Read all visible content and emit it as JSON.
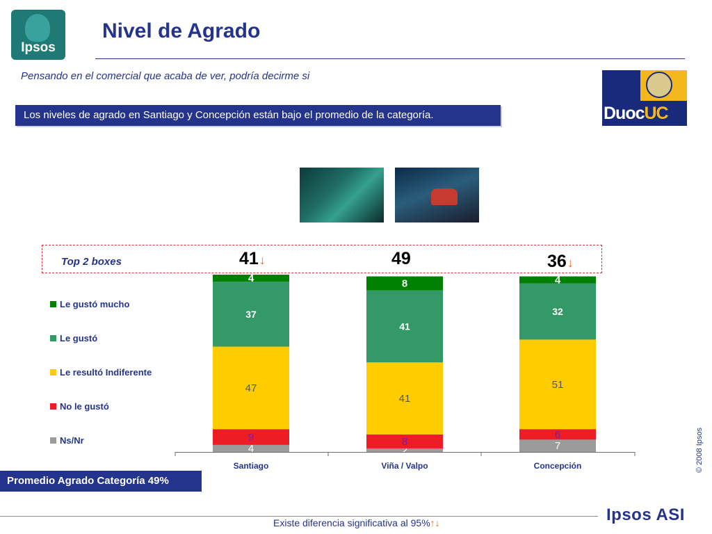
{
  "header": {
    "title": "Nivel de Agrado",
    "question": "Pensando en el comercial que acaba de ver, podría decirme si",
    "finding": "Los niveles de agrado en Santiago y Concepción están bajo el promedio de la categoría."
  },
  "logos": {
    "ipsos": "Ipsos",
    "duoc_part1": "Duoc",
    "duoc_part2": "UC",
    "ipsos_asi": "Ipsos ASI"
  },
  "top2": {
    "label": "Top 2 boxes",
    "values": [
      "41",
      "49",
      "36"
    ],
    "arrows": [
      "down",
      "",
      "down"
    ],
    "arrow_color": "#e3661f"
  },
  "promedio": "Promedio Agrado  Categoría 49%",
  "copyright": "© 2008 Ipsos",
  "footer": {
    "note": "Existe diferencia significativa al 95%"
  },
  "colors": {
    "brand_blue": "#24348c",
    "teal": "#1f7a76",
    "dashed_red": "#d3353a",
    "arrow_orange": "#e3661f"
  },
  "chart_data": {
    "type": "bar",
    "stacked": true,
    "categories": [
      "Santiago",
      "Viña / Valpo",
      "Concepción"
    ],
    "series": [
      {
        "name": "Ns/Nr",
        "color": "#9b9b9b",
        "values": [
          4,
          2,
          7
        ]
      },
      {
        "name": "No le gustó",
        "color": "#ee1c25",
        "values": [
          9,
          8,
          6
        ]
      },
      {
        "name": "Le resultó Indiferente",
        "color": "#ffcc00",
        "values": [
          47,
          41,
          51
        ]
      },
      {
        "name": "Le gustó",
        "color": "#339966",
        "values": [
          37,
          41,
          32
        ]
      },
      {
        "name": "Le gustó mucho",
        "color": "#008000",
        "values": [
          4,
          8,
          4
        ]
      }
    ],
    "legend_order": [
      "Le gustó mucho",
      "Le gustó",
      "Le resultó Indiferente",
      "No le gustó",
      "Ns/Nr"
    ],
    "ylim": [
      0,
      101
    ],
    "grid": false,
    "legend_position": "left"
  }
}
